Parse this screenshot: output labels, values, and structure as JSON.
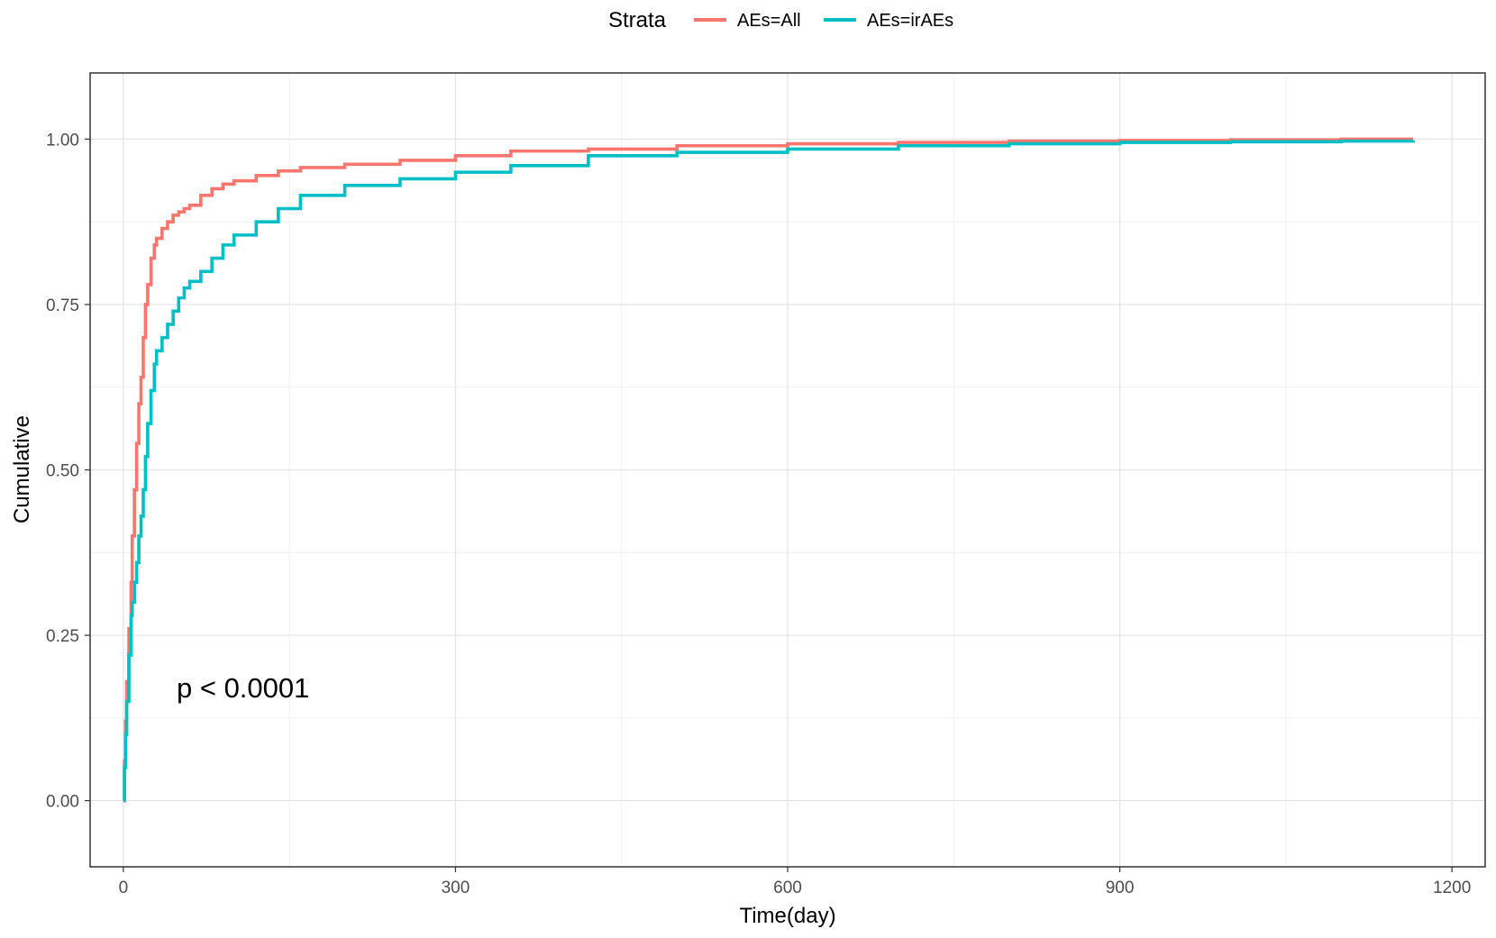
{
  "chart_data": {
    "type": "line",
    "step": true,
    "xlabel": "Time(day)",
    "ylabel": "Cumulative",
    "xlim": [
      -30,
      1230
    ],
    "ylim": [
      -0.1,
      1.1
    ],
    "x_ticks": [
      0,
      300,
      600,
      900,
      1200
    ],
    "x_minor": [
      150,
      450,
      750,
      1050
    ],
    "y_ticks": [
      0.0,
      0.25,
      0.5,
      0.75,
      1.0
    ],
    "y_minor": [
      0.125,
      0.375,
      0.625,
      0.875
    ],
    "x_tick_labels": [
      "0",
      "300",
      "600",
      "900",
      "1200"
    ],
    "y_tick_labels": [
      "0.00",
      "0.25",
      "0.50",
      "0.75",
      "1.00"
    ],
    "grid": true,
    "legend": {
      "title": "Strata",
      "position": "top"
    },
    "annotation": "p < 0.0001",
    "series": [
      {
        "name": "AEs=All",
        "color": "#F8766D",
        "x": [
          0,
          1,
          2,
          3,
          5,
          7,
          8,
          10,
          12,
          14,
          16,
          18,
          20,
          22,
          25,
          28,
          30,
          35,
          40,
          45,
          50,
          55,
          60,
          70,
          80,
          90,
          100,
          120,
          140,
          160,
          200,
          250,
          300,
          350,
          420,
          500,
          600,
          700,
          800,
          900,
          1000,
          1100,
          1165
        ],
        "y": [
          0.0,
          0.06,
          0.12,
          0.18,
          0.26,
          0.33,
          0.4,
          0.47,
          0.54,
          0.6,
          0.64,
          0.7,
          0.75,
          0.78,
          0.82,
          0.84,
          0.85,
          0.865,
          0.875,
          0.885,
          0.89,
          0.895,
          0.9,
          0.915,
          0.925,
          0.932,
          0.937,
          0.945,
          0.952,
          0.957,
          0.962,
          0.968,
          0.975,
          0.982,
          0.985,
          0.99,
          0.993,
          0.995,
          0.997,
          0.998,
          0.999,
          1.0,
          1.0
        ]
      },
      {
        "name": "AEs=irAEs",
        "color": "#00BFC4",
        "x": [
          0,
          1,
          2,
          3,
          5,
          7,
          8,
          10,
          12,
          14,
          16,
          18,
          20,
          22,
          25,
          28,
          30,
          35,
          40,
          45,
          50,
          55,
          60,
          70,
          80,
          90,
          100,
          120,
          140,
          160,
          200,
          250,
          300,
          350,
          420,
          500,
          600,
          700,
          800,
          900,
          1000,
          1100,
          1165
        ],
        "y": [
          0.0,
          0.05,
          0.1,
          0.15,
          0.22,
          0.28,
          0.3,
          0.33,
          0.36,
          0.4,
          0.43,
          0.47,
          0.52,
          0.57,
          0.62,
          0.66,
          0.68,
          0.7,
          0.72,
          0.74,
          0.76,
          0.775,
          0.785,
          0.8,
          0.82,
          0.84,
          0.855,
          0.875,
          0.895,
          0.915,
          0.93,
          0.94,
          0.95,
          0.96,
          0.975,
          0.98,
          0.985,
          0.99,
          0.993,
          0.995,
          0.996,
          0.997,
          0.998
        ]
      }
    ]
  }
}
